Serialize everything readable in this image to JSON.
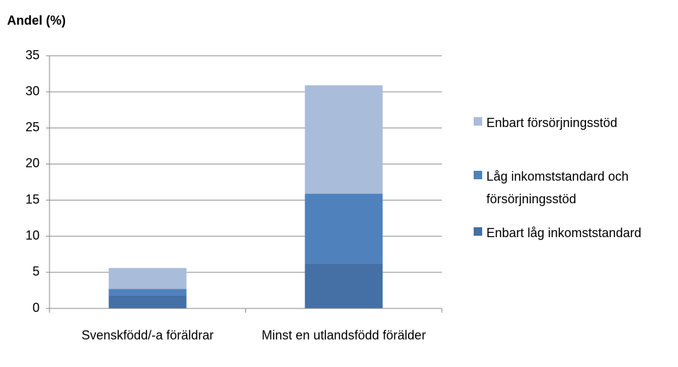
{
  "chart_data": {
    "type": "stacked_bar",
    "y_label": "Andel (%)",
    "categories": [
      "Svenskfödd/-a föräldrar",
      "Minst en utlandsfödd förälder"
    ],
    "series": [
      {
        "name": "Enbart låg inkomststandard",
        "color": "#4470a5",
        "values": [
          1.8,
          6.2
        ]
      },
      {
        "name": "Låg inkomststandard och försörjningsstöd",
        "color": "#4f81bd",
        "values": [
          0.9,
          9.7
        ]
      },
      {
        "name": "Enbart försörjningsstöd",
        "color": "#a9bcd9",
        "values": [
          2.9,
          15.0
        ]
      }
    ],
    "ylim": [
      0,
      35
    ],
    "yticks": [
      0,
      5,
      10,
      15,
      20,
      25,
      30,
      35
    ],
    "grid": true,
    "legend": "right"
  }
}
